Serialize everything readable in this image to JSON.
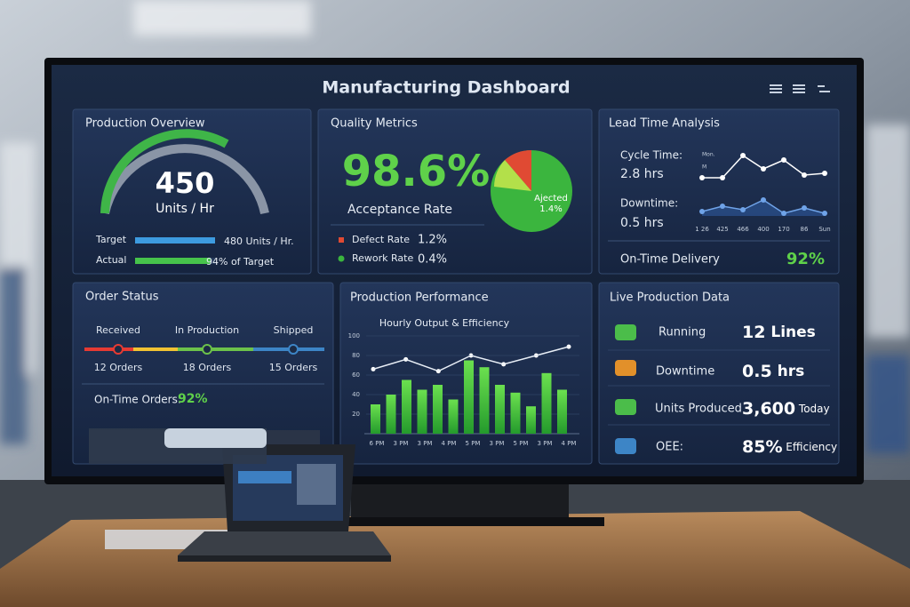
{
  "header": {
    "title": "Manufacturing Dashboard"
  },
  "production_overview": {
    "title": "Production Overview",
    "value": "450",
    "unit": "Units / Hr",
    "target_label": "Target",
    "target_value": "480 Units / Hr.",
    "actual_label": "Actual",
    "actual_value": "94% of Target",
    "actual_percent": 94
  },
  "quality_metrics": {
    "title": "Quality Metrics",
    "value": "98.6%",
    "label": "Acceptance Rate",
    "pie_label": [
      "Ajected",
      "1.4%"
    ],
    "rows": [
      {
        "label": "Defect Rate",
        "value": "1.2%"
      },
      {
        "label": "Rework Rate",
        "value": "0.4%"
      }
    ]
  },
  "lead_time": {
    "title": "Lead Time Analysis",
    "cycle_label": "Cycle Time:",
    "cycle_value": "2.8 hrs",
    "downtime_label": "Downtime:",
    "downtime_value": "0.5 hrs",
    "chart_labels": [
      "Mon.",
      "M"
    ],
    "x_labels": [
      "1 26",
      "425",
      "466",
      "400",
      "170",
      "86",
      "Sun"
    ],
    "cycle_series": [
      30,
      30,
      80,
      50,
      70,
      36,
      40
    ],
    "downtime_series": [
      10,
      22,
      14,
      36,
      6,
      18,
      6
    ],
    "delivery_label": "On-Time Delivery",
    "delivery_value": "92%"
  },
  "order_status": {
    "title": "Order Status",
    "stages": [
      {
        "label": "Received",
        "count": "12 Orders"
      },
      {
        "label": "In Production",
        "count": "18 Orders"
      },
      {
        "label": "Shipped",
        "count": "15 Orders"
      }
    ],
    "ontime_label": "On-Time Orders:",
    "ontime_value": "92%"
  },
  "production_performance": {
    "title": "Production Performance",
    "subtitle": "Hourly Output & Efficiency",
    "yticks": [
      100,
      80,
      60,
      40,
      20
    ],
    "x_labels": [
      "6 PM",
      "3 PM",
      "3 PM",
      "4 PM",
      "5 PM",
      "3 PM",
      "5 PM",
      "3 PM",
      "4 PM"
    ],
    "output": [
      30,
      40,
      55,
      45,
      50,
      35,
      75,
      68,
      50,
      42,
      28,
      62,
      45
    ],
    "efficiency": [
      66,
      76,
      64,
      80,
      71,
      80,
      89
    ]
  },
  "live_data": {
    "title": "Live Production Data",
    "rows": [
      {
        "label": "Running",
        "value": "12",
        "unit": "Lines"
      },
      {
        "label": "Downtime",
        "value": "0.5",
        "unit": "hrs"
      },
      {
        "label": "Units Produced",
        "value": "3,600",
        "unit": "Today"
      },
      {
        "label": "OEE:",
        "value": "85%",
        "unit": "Efficiency"
      }
    ]
  }
}
